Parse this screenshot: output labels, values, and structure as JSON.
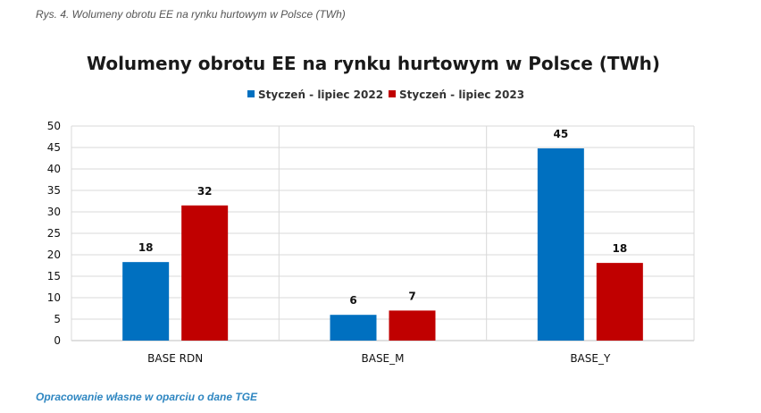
{
  "caption": "Rys. 4. Wolumeny obrotu EE na rynku hurtowym w Polsce (TWh)",
  "source": "Opracowanie własne w oparciu o dane TGE",
  "chart_data": {
    "type": "bar",
    "title": "Wolumeny obrotu EE na rynku hurtowym w Polsce (TWh)",
    "categories": [
      "BASE RDN",
      "BASE_M",
      "BASE_Y"
    ],
    "series": [
      {
        "name": "Styczeń - lipiec 2022",
        "color": "#0070C0",
        "values": [
          18,
          6,
          45
        ],
        "value_estimates": [
          18.3,
          6.0,
          44.8
        ]
      },
      {
        "name": "Styczeń - lipiec 2023",
        "color": "#C00000",
        "values": [
          32,
          7,
          18
        ],
        "value_estimates": [
          31.5,
          7.0,
          18.1
        ]
      }
    ],
    "ylim": [
      0,
      50
    ],
    "yticks": [
      0,
      5,
      10,
      15,
      20,
      25,
      30,
      35,
      40,
      45,
      50
    ],
    "xlabel": "",
    "ylabel": "",
    "grid": true,
    "legend_position": "top-center"
  }
}
